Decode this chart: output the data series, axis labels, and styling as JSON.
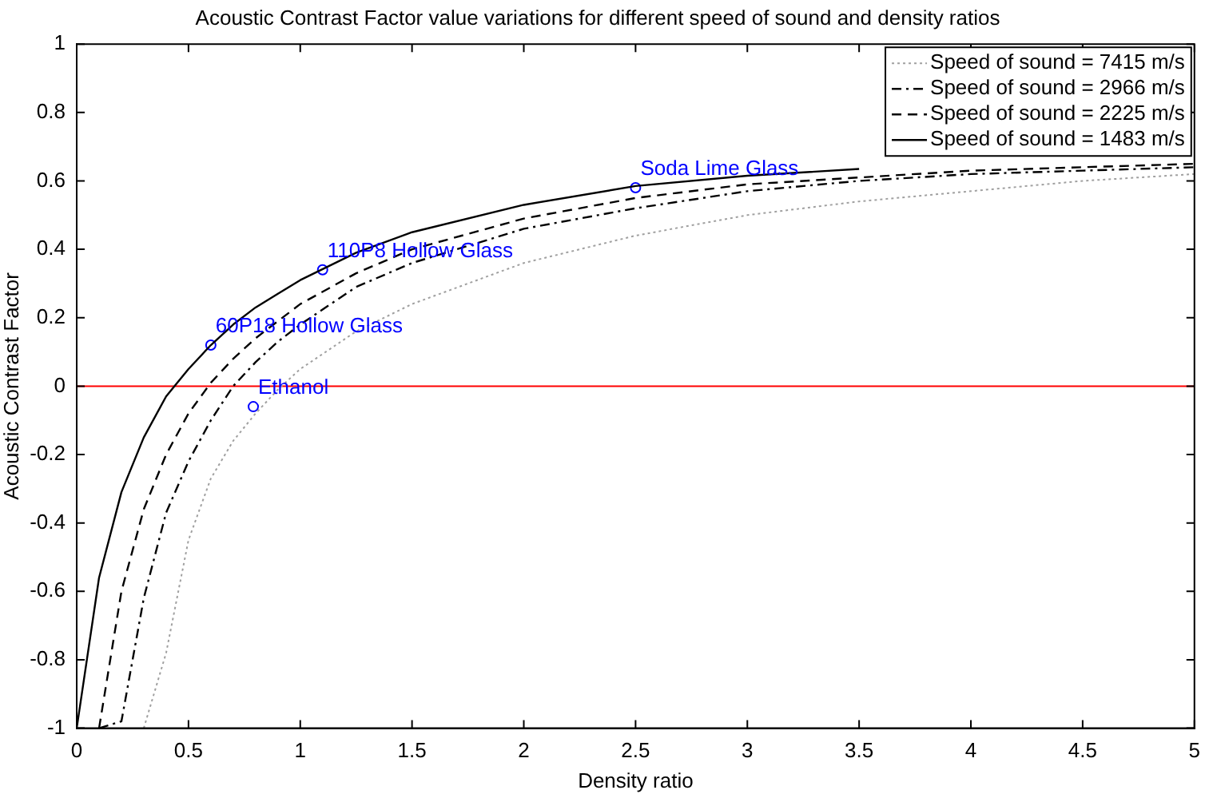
{
  "chart_data": {
    "type": "line",
    "title": "Acoustic Contrast Factor value variations for different speed of sound and density ratios",
    "xlabel": "Density ratio",
    "ylabel": "Acoustic Contrast Factor",
    "xlim": [
      0,
      5
    ],
    "xticks": [
      0,
      0.5,
      1,
      1.5,
      2,
      2.5,
      3,
      3.5,
      4,
      4.5,
      5
    ],
    "ylim": [
      -1,
      1
    ],
    "yticks": [
      -1,
      -0.8,
      -0.6,
      -0.4,
      -0.2,
      0,
      0.2,
      0.4,
      0.6,
      0.8,
      1
    ],
    "grid": false,
    "legend": "top right",
    "series": [
      {
        "name": "Speed of sound = 7415 m/s",
        "color": "#a0a0a0",
        "line_style": "dotted",
        "marker": "none",
        "x": [
          0.3,
          0.4,
          0.5,
          0.6,
          0.7,
          0.8,
          0.9,
          1.0,
          1.25,
          1.5,
          2,
          2.5,
          3,
          3.5,
          4,
          4.5,
          5
        ],
        "values": [
          -1,
          -0.78,
          -0.45,
          -0.27,
          -0.16,
          -0.08,
          -0.01,
          0.05,
          0.16,
          0.24,
          0.36,
          0.44,
          0.5,
          0.54,
          0.57,
          0.6,
          0.62
        ]
      },
      {
        "name": "Speed of sound = 2966 m/s",
        "color": "#000000",
        "line_style": "dashdot",
        "marker": "none",
        "x": [
          0.1,
          0.2,
          0.3,
          0.4,
          0.5,
          0.6,
          0.7,
          0.8,
          0.9,
          1.0,
          1.25,
          1.5,
          2,
          2.5,
          3,
          3.5,
          4,
          4.5,
          5
        ],
        "values": [
          -1,
          -0.98,
          -0.62,
          -0.37,
          -0.22,
          -0.1,
          0.0,
          0.07,
          0.13,
          0.18,
          0.29,
          0.36,
          0.46,
          0.52,
          0.57,
          0.6,
          0.62,
          0.63,
          0.64
        ]
      },
      {
        "name": "Speed of sound = 2225 m/s",
        "color": "#000000",
        "line_style": "dashed",
        "marker": "none",
        "x": [
          0.1,
          0.2,
          0.3,
          0.4,
          0.5,
          0.6,
          0.7,
          0.8,
          0.9,
          1.0,
          1.25,
          1.5,
          2,
          2.5,
          3,
          3.5,
          4,
          4.5,
          5
        ],
        "values": [
          -1,
          -0.6,
          -0.36,
          -0.2,
          -0.08,
          0.01,
          0.08,
          0.14,
          0.19,
          0.24,
          0.33,
          0.4,
          0.49,
          0.55,
          0.59,
          0.61,
          0.63,
          0.64,
          0.65
        ]
      },
      {
        "name": "Speed of sound = 1483 m/s",
        "color": "#000000",
        "line_style": "solid",
        "marker": "none",
        "x": [
          0,
          0.1,
          0.2,
          0.3,
          0.4,
          0.5,
          0.6,
          0.7,
          0.8,
          0.9,
          1.0,
          1.25,
          1.5,
          2,
          2.5,
          3,
          3.5
        ],
        "values": [
          -1,
          -0.56,
          -0.31,
          -0.15,
          -0.03,
          0.05,
          0.12,
          0.18,
          0.23,
          0.27,
          0.31,
          0.39,
          0.45,
          0.53,
          0.585,
          0.615,
          0.635
        ]
      },
      {
        "type": "scatter",
        "name": "60P18 Hollow Glass",
        "color": "#0000ff",
        "marker": "circle",
        "x": [
          0.6
        ],
        "values": [
          0.12
        ]
      },
      {
        "type": "scatter",
        "name": "110P8 Hollow Glass",
        "color": "#0000ff",
        "marker": "circle",
        "x": [
          1.1
        ],
        "values": [
          0.34
        ]
      },
      {
        "type": "scatter",
        "name": "Ethanol",
        "color": "#0000ff",
        "marker": "circle",
        "x": [
          0.79
        ],
        "values": [
          -0.06
        ]
      },
      {
        "type": "scatter",
        "name": "Soda Lime Glass",
        "color": "#0000ff",
        "marker": "circle",
        "x": [
          2.5
        ],
        "values": [
          0.58
        ]
      }
    ],
    "ref_lines": [
      {
        "axis": "y",
        "value": 0,
        "color": "#ff0000",
        "line_style": "solid"
      }
    ]
  }
}
